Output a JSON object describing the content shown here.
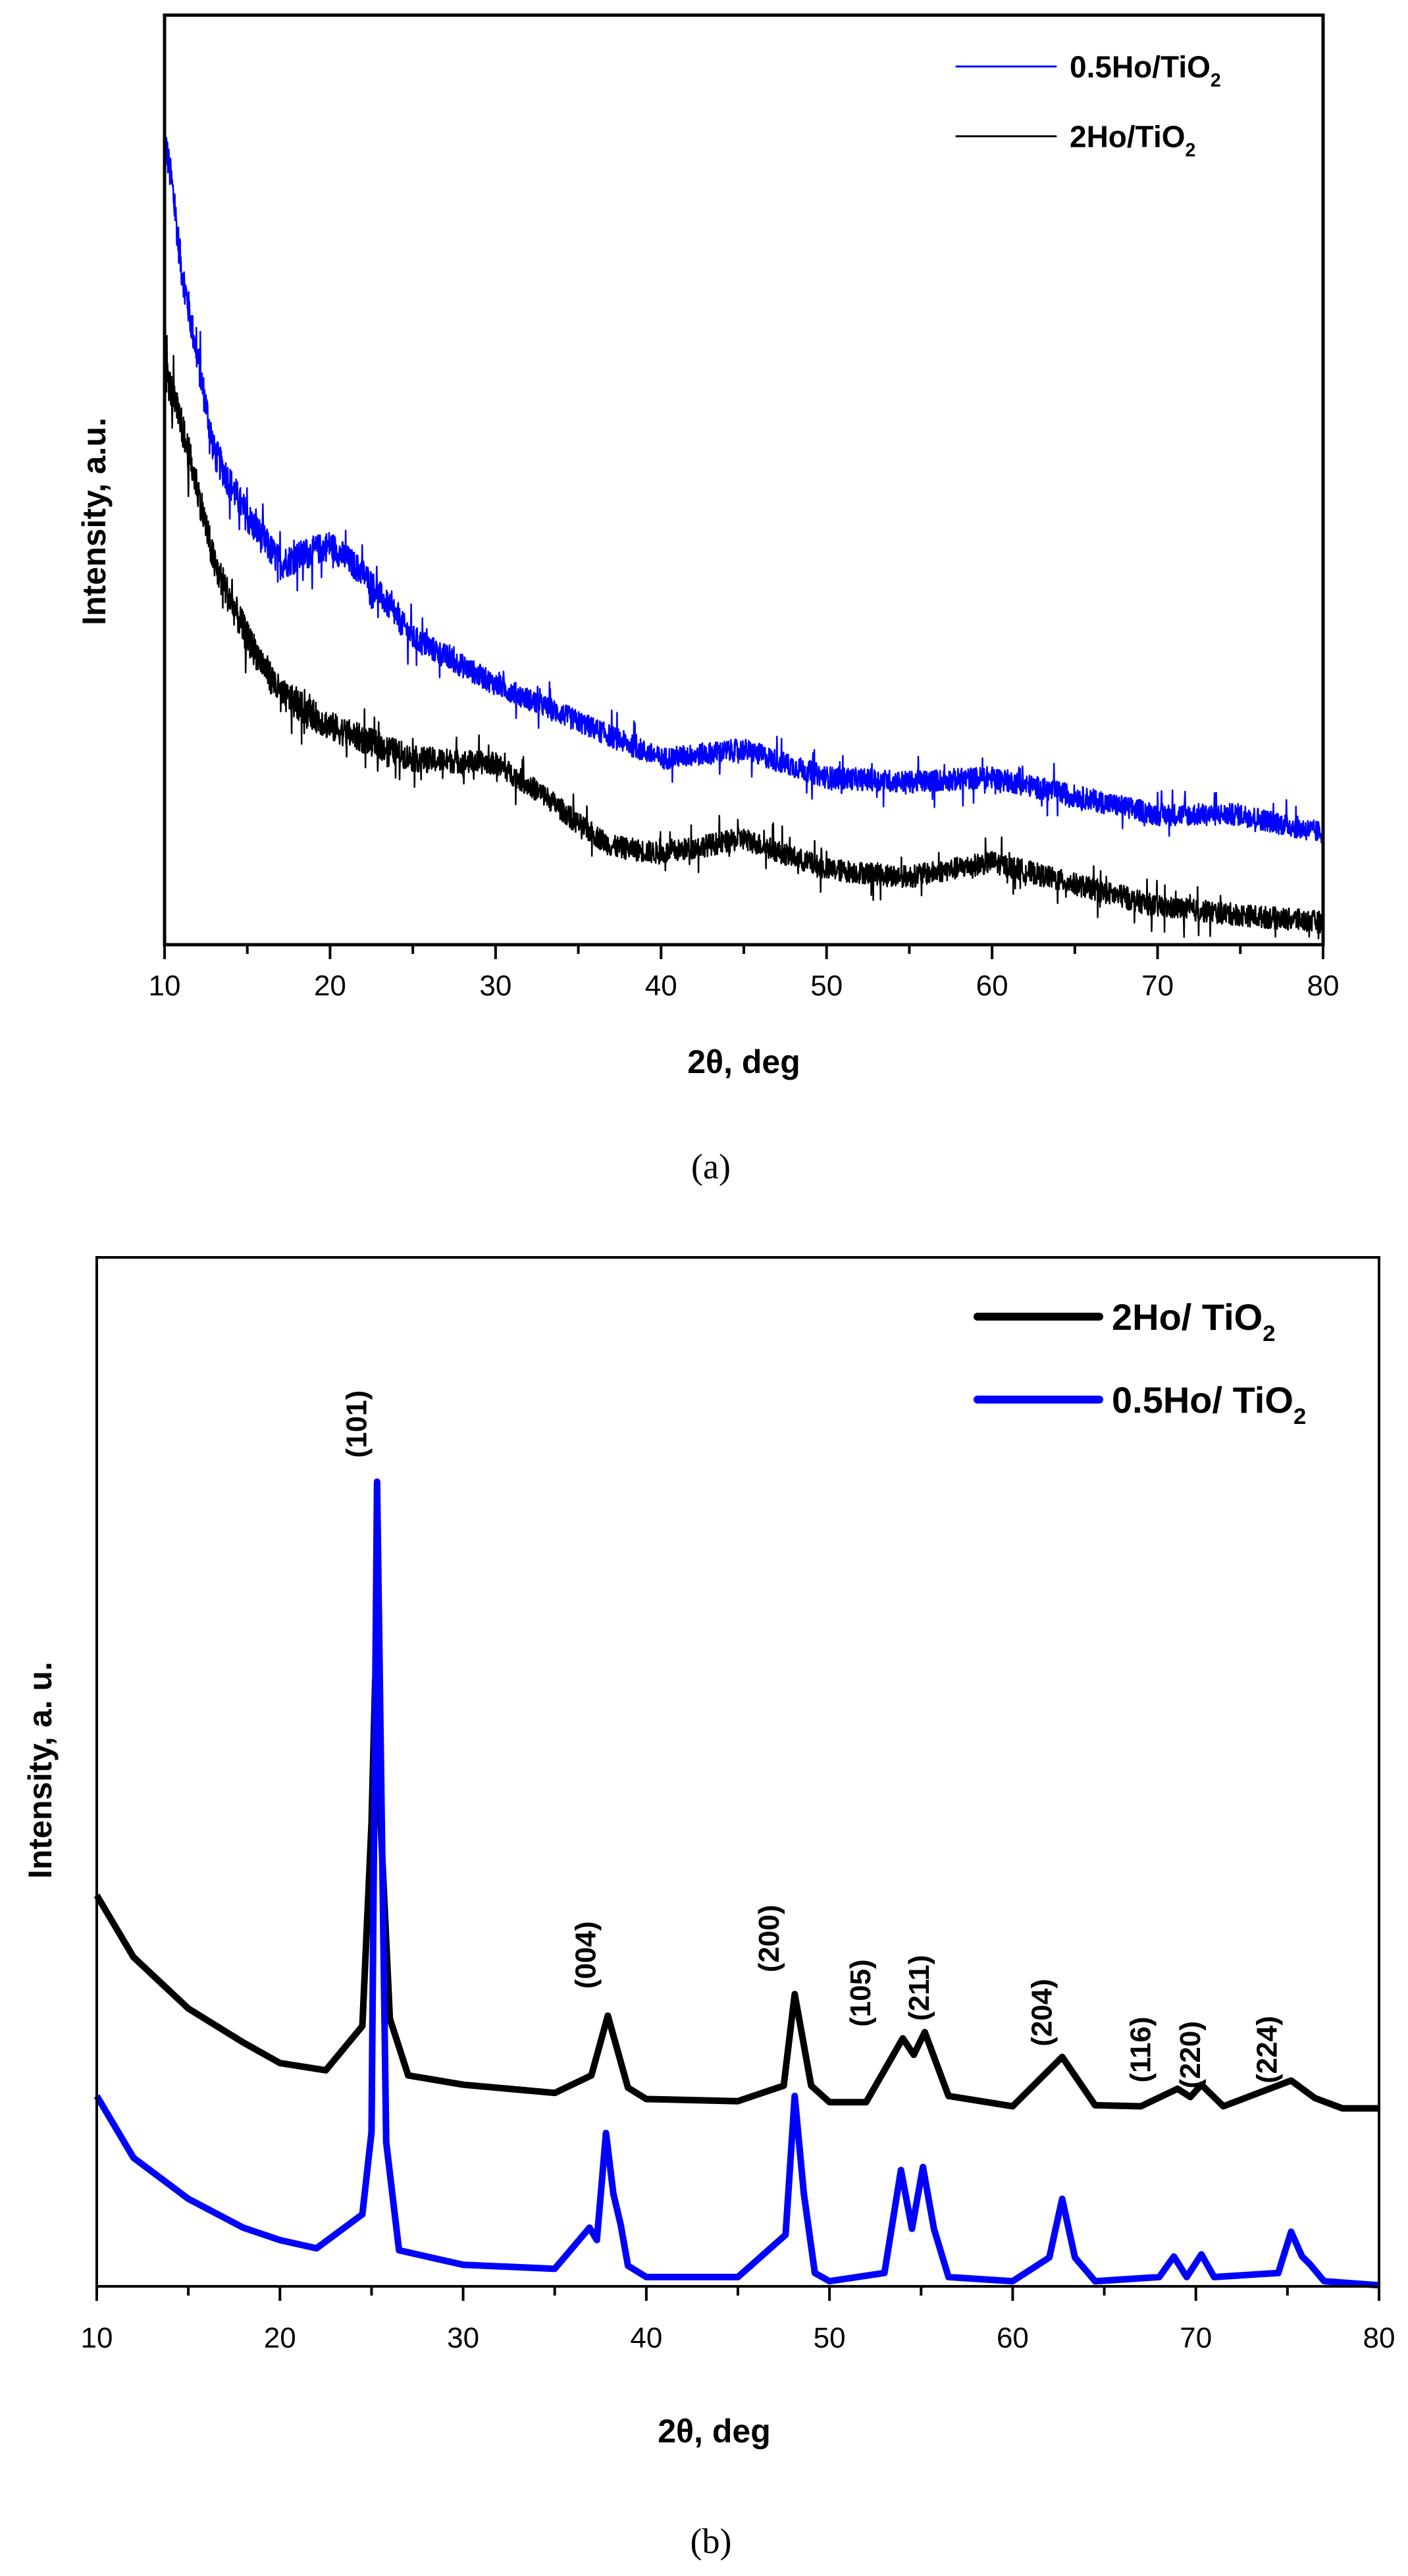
{
  "chart_data": [
    {
      "type": "line",
      "panel_label": "(a)",
      "xlabel": "2θ, deg",
      "ylabel": "Intensity, a.u.",
      "xlim": [
        10,
        80
      ],
      "ylim": [
        0,
        100
      ],
      "xticks": [
        "10",
        "20",
        "30",
        "40",
        "50",
        "60",
        "70",
        "80"
      ],
      "yticks": [],
      "grid": false,
      "legend_position": "top-right",
      "noisy": true,
      "series": [
        {
          "name": "0.5Ho/TiO",
          "sub": "2",
          "color": "#0000ff",
          "x": [
            10,
            10.5,
            11,
            12,
            13,
            15,
            17,
            20,
            22,
            25,
            30,
            35,
            40,
            45,
            50,
            55,
            60,
            65,
            70,
            75,
            80
          ],
          "y": [
            87,
            81,
            73,
            63,
            53,
            46,
            41,
            43,
            40,
            33,
            28,
            24,
            20,
            21,
            18,
            17.5,
            18,
            16,
            14,
            14,
            12
          ]
        },
        {
          "name": "2Ho/TiO",
          "sub": "2",
          "color": "#000000",
          "x": [
            10,
            11,
            12,
            13,
            15,
            17,
            20,
            25,
            30,
            33,
            35,
            37,
            40,
            45,
            50,
            55,
            60,
            65,
            70,
            75,
            80
          ],
          "y": [
            62,
            56,
            49,
            41,
            33,
            27,
            23.5,
            20,
            19.5,
            16,
            13,
            10.6,
            9.8,
            11.4,
            8.1,
            7.3,
            8.9,
            6.5,
            4.1,
            3.2,
            2.4
          ]
        }
      ]
    },
    {
      "type": "line",
      "panel_label": "(b)",
      "xlabel": "2θ, deg",
      "ylabel": "Intensity, a. u.",
      "xlim": [
        10,
        80
      ],
      "ylim": [
        0,
        100
      ],
      "xticks": [
        "10",
        "20",
        "30",
        "40",
        "50",
        "60",
        "70",
        "80"
      ],
      "yticks": [],
      "grid": false,
      "legend_position": "top-right",
      "noisy": false,
      "series": [
        {
          "name": "2Ho/ TiO",
          "sub": "2",
          "color": "#000000",
          "x": [
            10,
            12,
            15,
            18,
            20,
            22.5,
            24.5,
            25.0,
            25.2,
            25.5,
            26,
            27,
            30,
            35,
            37,
            37.9,
            39,
            40,
            45,
            47.5,
            48.1,
            49,
            50,
            52,
            54,
            54.6,
            55.2,
            56.5,
            60,
            62.7,
            64.5,
            67,
            69,
            69.7,
            70.3,
            71.5,
            75.2,
            76.5,
            78,
            80
          ],
          "y": [
            38,
            32,
            27,
            23.7,
            21.7,
            21,
            25.3,
            45,
            59,
            45,
            26,
            20.5,
            19.6,
            18.8,
            20.5,
            26.3,
            19.3,
            18.2,
            18,
            19.5,
            28.4,
            19.5,
            17.9,
            17.9,
            24.1,
            22.5,
            24.7,
            18.5,
            17.5,
            22.3,
            17.6,
            17.5,
            19.2,
            18.4,
            19.6,
            17.5,
            20,
            18.3,
            17.3,
            17.3
          ]
        },
        {
          "name": "0.5Ho/ TiO",
          "sub": "2",
          "color": "#0000ff",
          "x": [
            10,
            12,
            15,
            18,
            20,
            22,
            24.5,
            25,
            25.3,
            25.8,
            26.5,
            27,
            30,
            35,
            36.9,
            37.3,
            37.8,
            38.2,
            38.6,
            39,
            40,
            45,
            47.6,
            48.1,
            48.6,
            49.2,
            50,
            53,
            53.9,
            54.5,
            55.1,
            55.7,
            56.5,
            60,
            62,
            62.7,
            63.4,
            64.5,
            68,
            68.8,
            69.5,
            70.3,
            71,
            74.5,
            75.2,
            75.8,
            76.2,
            77,
            80
          ],
          "y": [
            18.5,
            12.5,
            8.5,
            5.7,
            4.5,
            3.7,
            7,
            15,
            78.2,
            14,
            3.5,
            3.3,
            2.1,
            1.7,
            5.7,
            4.5,
            14.9,
            9,
            6,
            2,
            0.9,
            0.9,
            5,
            18.5,
            9,
            1.3,
            0.5,
            1.3,
            11.3,
            5.6,
            11.6,
            5.6,
            0.9,
            0.5,
            2.8,
            8.5,
            2.8,
            0.5,
            0.9,
            2.9,
            0.9,
            3.1,
            0.9,
            1.3,
            5.3,
            2.9,
            2.2,
            0.5,
            0.1
          ]
        }
      ],
      "annotations": [
        {
          "text": "(101)",
          "x": 24.2,
          "y": 83.8
        },
        {
          "text": "(004)",
          "x": 36.7,
          "y": 32.2
        },
        {
          "text": "(200)",
          "x": 46.7,
          "y": 33.8
        },
        {
          "text": "(105)",
          "x": 51.7,
          "y": 28.5
        },
        {
          "text": "(211)",
          "x": 54.9,
          "y": 29.0
        },
        {
          "text": "(204)",
          "x": 61.6,
          "y": 26.6
        },
        {
          "text": "(116)",
          "x": 67.0,
          "y": 23.0
        },
        {
          "text": "(220)",
          "x": 69.7,
          "y": 22.5
        },
        {
          "text": "(224)",
          "x": 73.9,
          "y": 23.0
        }
      ]
    }
  ]
}
